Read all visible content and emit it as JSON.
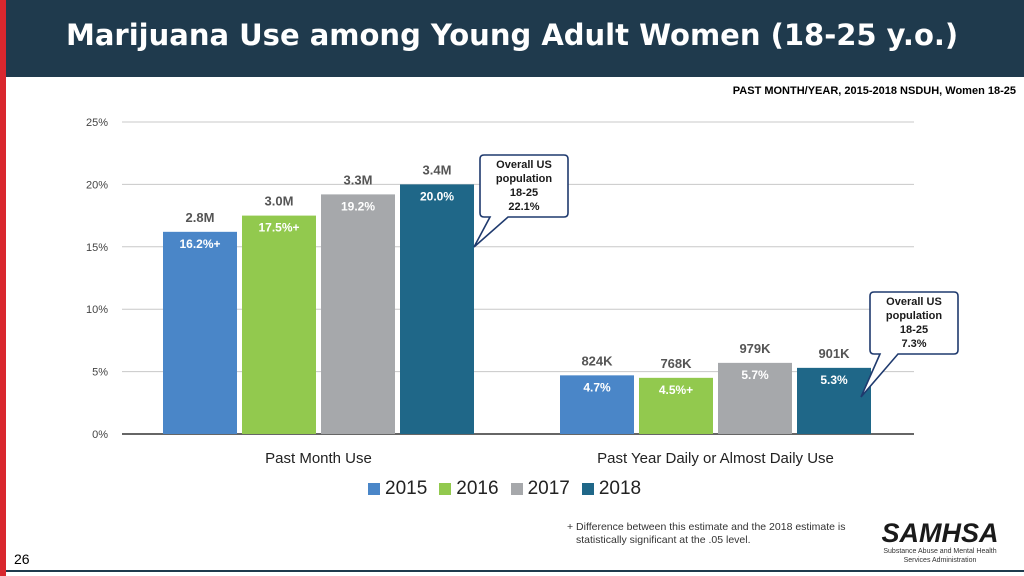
{
  "header": {
    "title": "Marijuana Use among Young Adult Women (18-25 y.o.)",
    "source": "PAST MONTH/YEAR, 2015-2018 NSDUH, Women 18-25"
  },
  "chart_data": {
    "type": "bar",
    "categories": [
      "Past Month Use",
      "Past Year Daily or Almost Daily Use"
    ],
    "series": [
      {
        "name": "2015",
        "color": "#4a86c8",
        "values": [
          16.2,
          4.7
        ],
        "value_labels": [
          "16.2%+",
          "4.7%"
        ],
        "count_labels": [
          "2.8M",
          "824K"
        ]
      },
      {
        "name": "2016",
        "color": "#92c94e",
        "values": [
          17.5,
          4.5
        ],
        "value_labels": [
          "17.5%+",
          "4.5%+"
        ],
        "count_labels": [
          "3.0M",
          "768K"
        ]
      },
      {
        "name": "2017",
        "color": "#a6a8ab",
        "values": [
          19.2,
          5.7
        ],
        "value_labels": [
          "19.2%",
          "5.7%"
        ],
        "count_labels": [
          "3.3M",
          "979K"
        ]
      },
      {
        "name": "2018",
        "color": "#1f6788",
        "values": [
          20.0,
          5.3
        ],
        "value_labels": [
          "20.0%",
          "5.3%"
        ],
        "count_labels": [
          "3.4M",
          "901K"
        ]
      }
    ],
    "ylim": [
      0,
      25
    ],
    "yticks": [
      0,
      5,
      10,
      15,
      20,
      25
    ],
    "ytick_labels": [
      "0%",
      "5%",
      "10%",
      "15%",
      "20%",
      "25%"
    ],
    "grid": true,
    "legend_position": "bottom-center",
    "annotations": [
      {
        "lines": [
          "Overall US",
          "population",
          "18-25",
          "22.1%"
        ],
        "value": 22.1,
        "category": "Past Month Use"
      },
      {
        "lines": [
          "Overall US",
          "population",
          "18-25",
          "7.3%"
        ],
        "value": 7.3,
        "category": "Past Year Daily or Almost Daily Use"
      }
    ]
  },
  "footnote": {
    "line1": "+ Difference between this estimate and the 2018 estimate is",
    "line2": "statistically significant at the .05 level."
  },
  "page_number": "26",
  "logo": {
    "word": "SAMHSA",
    "sub1": "Substance Abuse and Mental Health",
    "sub2": "Services Administration"
  }
}
